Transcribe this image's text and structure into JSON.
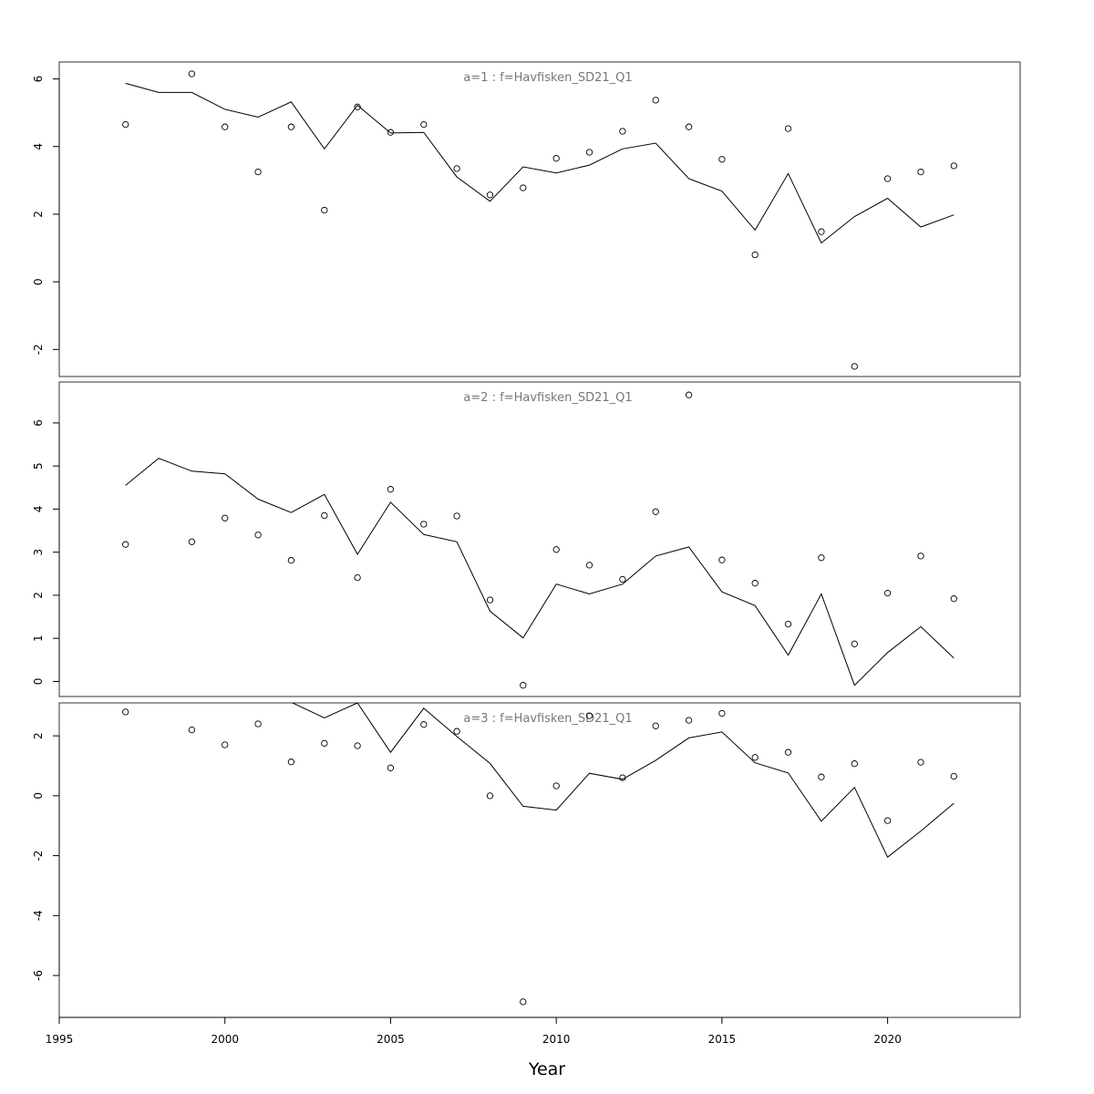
{
  "chart_data": {
    "type": "scatter",
    "xlabel": "Year",
    "xlim": [
      1995,
      2024
    ],
    "x_ticks": [
      1995,
      2000,
      2005,
      2010,
      2015,
      2020
    ],
    "years": [
      1997,
      1998,
      1999,
      2000,
      2001,
      2002,
      2003,
      2004,
      2005,
      2006,
      2007,
      2008,
      2009,
      2010,
      2011,
      2012,
      2013,
      2014,
      2015,
      2016,
      2017,
      2018,
      2019,
      2020,
      2021,
      2022
    ],
    "panels": [
      {
        "title": "a=1  :  f=Havfisken_SD21_Q1",
        "ylim": [
          -2.8,
          6.5
        ],
        "y_ticks": [
          -2,
          0,
          2,
          4,
          6
        ],
        "observed": [
          [
            1997,
            4.65
          ],
          [
            1999,
            6.15
          ],
          [
            2000,
            4.58
          ],
          [
            2001,
            3.25
          ],
          [
            2002,
            4.58
          ],
          [
            2003,
            2.12
          ],
          [
            2004,
            5.17
          ],
          [
            2005,
            4.42
          ],
          [
            2006,
            4.65
          ],
          [
            2007,
            3.35
          ],
          [
            2008,
            2.57
          ],
          [
            2009,
            2.78
          ],
          [
            2010,
            3.65
          ],
          [
            2011,
            3.83
          ],
          [
            2012,
            4.45
          ],
          [
            2013,
            5.37
          ],
          [
            2014,
            4.58
          ],
          [
            2015,
            3.62
          ],
          [
            2016,
            0.8
          ],
          [
            2017,
            4.53
          ],
          [
            2018,
            1.48
          ],
          [
            2019,
            -2.5
          ],
          [
            2020,
            3.05
          ],
          [
            2021,
            3.25
          ],
          [
            2022,
            3.43
          ]
        ],
        "fitted": [
          5.87,
          5.6,
          5.6,
          5.1,
          4.87,
          5.32,
          3.93,
          5.22,
          4.4,
          4.42,
          3.1,
          2.38,
          3.4,
          3.22,
          3.45,
          3.93,
          4.1,
          3.05,
          2.68,
          1.53,
          3.2,
          1.15,
          1.93,
          2.47,
          1.62,
          1.98
        ]
      },
      {
        "title": "a=2  :  f=Havfisken_SD21_Q1",
        "ylim": [
          -0.35,
          6.95
        ],
        "y_ticks": [
          0,
          1,
          2,
          3,
          4,
          5,
          6
        ],
        "observed": [
          [
            1997,
            3.18
          ],
          [
            1999,
            3.24
          ],
          [
            2000,
            3.79
          ],
          [
            2001,
            3.4
          ],
          [
            2002,
            2.81
          ],
          [
            2003,
            3.85
          ],
          [
            2004,
            2.41
          ],
          [
            2005,
            4.46
          ],
          [
            2006,
            3.65
          ],
          [
            2007,
            3.84
          ],
          [
            2008,
            1.89
          ],
          [
            2009,
            -0.09
          ],
          [
            2010,
            3.06
          ],
          [
            2011,
            2.7
          ],
          [
            2012,
            2.37
          ],
          [
            2013,
            3.94
          ],
          [
            2014,
            6.65
          ],
          [
            2015,
            2.82
          ],
          [
            2016,
            2.28
          ],
          [
            2017,
            1.33
          ],
          [
            2018,
            2.87
          ],
          [
            2019,
            0.87
          ],
          [
            2020,
            2.05
          ],
          [
            2021,
            2.91
          ],
          [
            2022,
            1.92
          ]
        ],
        "fitted": [
          4.55,
          5.18,
          4.88,
          4.82,
          4.23,
          3.92,
          4.34,
          2.95,
          4.16,
          3.41,
          3.24,
          1.63,
          1.01,
          2.26,
          2.03,
          2.26,
          2.91,
          3.12,
          2.08,
          1.76,
          0.61,
          2.03,
          -0.09,
          0.67,
          1.27,
          0.54
        ]
      },
      {
        "title": "a=3  :  f=Havfisken_SD21_Q1",
        "ylim": [
          -7.4,
          3.1
        ],
        "y_ticks": [
          -6,
          -4,
          -2,
          0,
          2
        ],
        "observed": [
          [
            1997,
            2.8
          ],
          [
            1999,
            2.2
          ],
          [
            2000,
            1.7
          ],
          [
            2001,
            2.4
          ],
          [
            2002,
            1.13
          ],
          [
            2003,
            1.75
          ],
          [
            2004,
            1.67
          ],
          [
            2005,
            0.93
          ],
          [
            2006,
            2.38
          ],
          [
            2007,
            2.15
          ],
          [
            2008,
            0.0
          ],
          [
            2009,
            -6.88
          ],
          [
            2010,
            0.33
          ],
          [
            2011,
            2.67
          ],
          [
            2012,
            0.6
          ],
          [
            2013,
            2.33
          ],
          [
            2014,
            2.52
          ],
          [
            2015,
            2.75
          ],
          [
            2016,
            1.28
          ],
          [
            2017,
            1.45
          ],
          [
            2018,
            0.63
          ],
          [
            2019,
            1.07
          ],
          [
            2020,
            -0.83
          ],
          [
            2021,
            1.12
          ],
          [
            2022,
            0.65
          ]
        ],
        "fitted": [
          null,
          null,
          null,
          null,
          null,
          3.12,
          2.6,
          3.1,
          1.45,
          2.92,
          1.98,
          1.08,
          -0.35,
          -0.48,
          0.75,
          0.55,
          1.18,
          1.93,
          2.13,
          1.1,
          0.76,
          -0.85,
          0.28,
          -2.05,
          -1.18,
          -0.25
        ]
      }
    ]
  }
}
